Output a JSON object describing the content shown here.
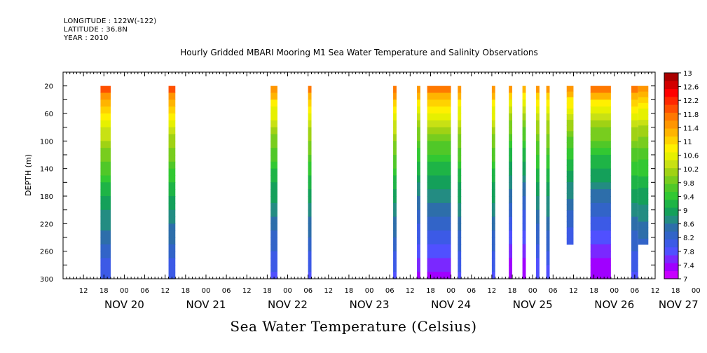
{
  "meta": {
    "longitude": "LONGITUDE : 122W(-122)",
    "latitude": "LATITUDE : 36.8N",
    "year": "YEAR : 2010"
  },
  "title": "Hourly Gridded MBARI Mooring M1 Sea Water Temperature and Salinity Observations",
  "xlabel": "Sea Water Temperature (Celsius)",
  "ylabel": "DEPTH (m)",
  "colors": {
    "scale": [
      "#c800ff",
      "#a000ff",
      "#7a28ff",
      "#5050ff",
      "#3c5ae6",
      "#3264c8",
      "#2d6eaa",
      "#238c82",
      "#14a05a",
      "#1eb446",
      "#32c832",
      "#50c828",
      "#78cd1e",
      "#a0d214",
      "#c8e114",
      "#e6f000",
      "#fff000",
      "#ffd200",
      "#ffb400",
      "#ff9600",
      "#ff7800",
      "#ff5000",
      "#ff2800",
      "#ff0000",
      "#d20000",
      "#aa0000"
    ]
  },
  "chart_data": {
    "type": "heatmap",
    "x_axis": {
      "hour_ticks": [
        "12",
        "18",
        "00",
        "06",
        "12",
        "18",
        "00",
        "06",
        "12",
        "18",
        "00",
        "06",
        "12",
        "18",
        "00",
        "06",
        "12",
        "18",
        "00",
        "06",
        "12",
        "18",
        "00",
        "06",
        "12",
        "18",
        "00",
        "06",
        "12",
        "18",
        "00",
        "06",
        "12",
        "18",
        "00",
        "06"
      ],
      "day_labels": [
        "NOV 20",
        "NOV 21",
        "NOV 22",
        "NOV 23",
        "NOV 24",
        "NOV 25",
        "NOV 26",
        "NOV 27"
      ],
      "range": [
        "2010-11-20 06:00",
        "2010-11-27 12:00"
      ]
    },
    "y_axis": {
      "label": "DEPTH (m)",
      "range": [
        0,
        300
      ],
      "reversed": true,
      "ticks": [
        "20",
        "60",
        "100",
        "140",
        "180",
        "220",
        "260",
        "300"
      ]
    },
    "colorbar": {
      "labels": [
        "13",
        "12.6",
        "12.2",
        "11.8",
        "11.4",
        "11",
        "10.6",
        "10.2",
        "9.8",
        "9.4",
        "9",
        "8.6",
        "8.2",
        "7.8",
        "7.4",
        "7"
      ],
      "min": 7,
      "max": 13,
      "step": 0.2
    },
    "observations": [
      {
        "start": "2010-11-20 17:00",
        "end": "2010-11-20 20:00",
        "surface_temp": 12.5,
        "bottom_temp": 7.9,
        "max_depth": 300
      },
      {
        "start": "2010-11-21 13:00",
        "end": "2010-11-21 15:00",
        "surface_temp": 12.4,
        "bottom_temp": 7.9,
        "max_depth": 300
      },
      {
        "start": "2010-11-22 19:00",
        "end": "2010-11-22 21:00",
        "surface_temp": 12.0,
        "bottom_temp": 7.8,
        "max_depth": 300
      },
      {
        "start": "2010-11-23 06:00",
        "end": "2010-11-23 07:00",
        "surface_temp": 12.2,
        "bottom_temp": 7.8,
        "max_depth": 300
      },
      {
        "start": "2010-11-24 07:00",
        "end": "2010-11-24 08:00",
        "surface_temp": 12.3,
        "bottom_temp": 7.8,
        "max_depth": 300
      },
      {
        "start": "2010-11-24 14:00",
        "end": "2010-11-24 15:00",
        "surface_temp": 12.1,
        "bottom_temp": 7.4,
        "max_depth": 300
      },
      {
        "start": "2010-11-24 17:00",
        "end": "2010-11-25 00:00",
        "surface_temp": 12.3,
        "bottom_temp": 7.4,
        "max_depth": 300
      },
      {
        "start": "2010-11-25 02:00",
        "end": "2010-11-25 03:00",
        "surface_temp": 12.0,
        "bottom_temp": 7.8,
        "max_depth": 300
      },
      {
        "start": "2010-11-25 12:00",
        "end": "2010-11-25 13:00",
        "surface_temp": 12.0,
        "bottom_temp": 7.8,
        "max_depth": 300
      },
      {
        "start": "2010-11-25 17:00",
        "end": "2010-11-25 18:00",
        "surface_temp": 11.9,
        "bottom_temp": 7.2,
        "max_depth": 300
      },
      {
        "start": "2010-11-25 21:00",
        "end": "2010-11-25 22:00",
        "surface_temp": 11.8,
        "bottom_temp": 7.2,
        "max_depth": 300
      },
      {
        "start": "2010-11-26 01:00",
        "end": "2010-11-26 02:00",
        "surface_temp": 11.9,
        "bottom_temp": 7.7,
        "max_depth": 300
      },
      {
        "start": "2010-11-26 04:00",
        "end": "2010-11-26 05:00",
        "surface_temp": 11.9,
        "bottom_temp": 7.8,
        "max_depth": 300
      },
      {
        "start": "2010-11-26 10:00",
        "end": "2010-11-26 12:00",
        "surface_temp": 12.0,
        "bottom_temp": 7.9,
        "max_depth": 250
      },
      {
        "start": "2010-11-26 17:00",
        "end": "2010-11-26 23:00",
        "surface_temp": 12.2,
        "bottom_temp": 7.2,
        "max_depth": 300
      },
      {
        "start": "2010-11-27 05:00",
        "end": "2010-11-27 07:00",
        "surface_temp": 12.1,
        "bottom_temp": 7.8,
        "max_depth": 300
      },
      {
        "start": "2010-11-27 07:00",
        "end": "2010-11-27 10:00",
        "surface_temp": 12.0,
        "bottom_temp": 8.3,
        "max_depth": 250
      }
    ]
  }
}
